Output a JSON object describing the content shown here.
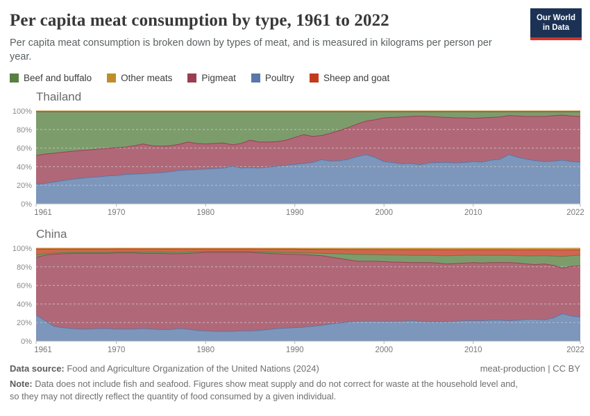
{
  "header": {
    "title": "Per capita meat consumption by type, 1961 to 2022",
    "subtitle": "Per capita meat consumption is broken down by types of meat, and is measured in kilograms per person per year.",
    "logo_line1": "Our World",
    "logo_line2": "in Data",
    "logo_bg": "#1c3254",
    "logo_accent": "#ce362b"
  },
  "legend": {
    "items": [
      {
        "label": "Beef and buffalo",
        "color": "#588043"
      },
      {
        "label": "Other meats",
        "color": "#BE8E2B"
      },
      {
        "label": "Pigmeat",
        "color": "#9A3E52"
      },
      {
        "label": "Poultry",
        "color": "#5878A8"
      },
      {
        "label": "Sheep and goat",
        "color": "#C23B1D"
      }
    ]
  },
  "chart_data": [
    {
      "type": "area",
      "stacked": true,
      "normalized": "percent",
      "entity": "Thailand",
      "x_start": 1961,
      "x_end": 2022,
      "x_ticks": [
        1961,
        1970,
        1980,
        1990,
        2000,
        2010,
        2022
      ],
      "y_ticks": [
        0,
        20,
        40,
        60,
        80,
        100
      ],
      "y_unit": "%",
      "grid": true,
      "series": [
        {
          "name": "Poultry",
          "color": "#5878A8",
          "values": [
            21,
            22,
            23.5,
            25,
            26.5,
            27.5,
            28.5,
            29,
            30,
            30.5,
            31.5,
            32,
            32.5,
            33,
            33.5,
            34.5,
            36,
            36.5,
            37,
            37.5,
            38,
            38.5,
            40.5,
            38.5,
            39,
            38.5,
            39.5,
            40.5,
            41.5,
            42.5,
            43.5,
            44.5,
            47.5,
            46,
            46.5,
            48,
            51,
            53,
            50,
            45.5,
            44.5,
            43,
            43.5,
            42,
            44,
            44.5,
            44.5,
            44,
            44.5,
            45.5,
            45,
            47,
            48,
            53,
            50,
            48,
            46.5,
            45.5,
            46,
            47,
            45.5,
            45
          ]
        },
        {
          "name": "Pigmeat",
          "color": "#9A3E52",
          "values": [
            31,
            31.5,
            31,
            30.5,
            30,
            30,
            29.5,
            30,
            29.5,
            30,
            29.5,
            30.5,
            32,
            29.5,
            28.5,
            28,
            28,
            30,
            28,
            27,
            27,
            27,
            23,
            26.5,
            29.5,
            28,
            27,
            26.5,
            27,
            29,
            31,
            28,
            26,
            30,
            32.5,
            34,
            35,
            36,
            40.5,
            47,
            48.5,
            50.5,
            50.5,
            52.5,
            50,
            49,
            48.5,
            48.5,
            48,
            46.5,
            47.5,
            46,
            45.5,
            42,
            44.5,
            46,
            47.5,
            48.5,
            49,
            48.5,
            49,
            49
          ]
        },
        {
          "name": "Beef and buffalo",
          "color": "#588043",
          "values": [
            47,
            45.5,
            44.5,
            43.5,
            42.5,
            41.5,
            41,
            40,
            39.5,
            38.5,
            38,
            36.5,
            34.5,
            36.5,
            37,
            36.5,
            35,
            32.5,
            34,
            34.5,
            34,
            33.5,
            35.5,
            34,
            30.5,
            32.5,
            32.5,
            32,
            30.5,
            27.5,
            24.5,
            26.5,
            25.5,
            23,
            20,
            17,
            13,
            10,
            8.5,
            6.5,
            6,
            5.5,
            5,
            4.5,
            5,
            5.5,
            6,
            6.5,
            6.5,
            7,
            6.5,
            6,
            5.5,
            4,
            4.5,
            5,
            5,
            5,
            4,
            3.5,
            4.5,
            5
          ]
        },
        {
          "name": "Sheep and goat",
          "color": "#C23B1D",
          "values": 0.35
        },
        {
          "name": "Other meats",
          "color": "#BE8E2B",
          "values": 0.65
        }
      ]
    },
    {
      "type": "area",
      "stacked": true,
      "normalized": "percent",
      "entity": "China",
      "x_start": 1961,
      "x_end": 2022,
      "x_ticks": [
        1961,
        1970,
        1980,
        1990,
        2000,
        2010,
        2022
      ],
      "y_ticks": [
        0,
        20,
        40,
        60,
        80,
        100
      ],
      "y_unit": "%",
      "grid": true,
      "series": [
        {
          "name": "Poultry",
          "color": "#5878A8",
          "values": [
            28,
            22,
            16,
            14.5,
            13.5,
            13,
            13,
            13.5,
            13.5,
            13,
            13,
            13,
            13.5,
            13,
            12.5,
            12.5,
            13.5,
            13,
            11.5,
            11,
            10.5,
            10.5,
            10.5,
            11,
            11,
            11.5,
            12.5,
            13.5,
            14,
            14.5,
            15,
            16,
            17,
            18.5,
            19.5,
            20.5,
            21.5,
            21.5,
            21.5,
            21.5,
            21.5,
            21.5,
            22,
            21.5,
            21,
            21,
            21,
            21.5,
            22,
            22,
            22,
            22.5,
            22.5,
            22,
            22.5,
            23.5,
            23.5,
            23,
            25,
            29.5,
            27,
            26
          ]
        },
        {
          "name": "Pigmeat",
          "color": "#9A3E52",
          "values": [
            62,
            70.5,
            77.5,
            79.5,
            81,
            81.5,
            81.5,
            81,
            81,
            82,
            82,
            82,
            81,
            81.5,
            82,
            81.5,
            80.5,
            81.5,
            83.5,
            84.5,
            85,
            85,
            85,
            84.5,
            84.5,
            83.5,
            82,
            80.5,
            79.5,
            79,
            78,
            76.5,
            75,
            72,
            69.5,
            67,
            64.5,
            64.5,
            64.5,
            64,
            63.5,
            63.5,
            62.5,
            63,
            63.5,
            63,
            62,
            62,
            62,
            62.5,
            62,
            62,
            62,
            62.5,
            61.5,
            59.5,
            59,
            60,
            56.5,
            49,
            53.5,
            55
          ]
        },
        {
          "name": "Beef and buffalo",
          "color": "#588043",
          "values": [
            2.5,
            1.5,
            1.3,
            1.2,
            1,
            1,
            1,
            1,
            1,
            1,
            1,
            1,
            1.3,
            1.3,
            1.3,
            1.5,
            1.5,
            1.5,
            1.3,
            1,
            1,
            1,
            1,
            1,
            1,
            1.2,
            1.3,
            1.5,
            1.7,
            1.7,
            2,
            2.3,
            2.5,
            3.8,
            5,
            6.1,
            7.2,
            7.2,
            7,
            7.3,
            7.6,
            7.6,
            7.9,
            7.9,
            7.8,
            8.2,
            9,
            8.7,
            8.4,
            8,
            8.3,
            7.9,
            7.9,
            7.8,
            8,
            8.8,
            9.3,
            9,
            10,
            12.5,
            11.5,
            11.5
          ]
        },
        {
          "name": "Sheep and goat",
          "color": "#C23B1D",
          "values": [
            6.5,
            5,
            4.2,
            3.8,
            3.5,
            3.5,
            3.5,
            3.5,
            3.5,
            3.2,
            3.2,
            3.2,
            3.4,
            3.4,
            3.4,
            3.7,
            3.7,
            3.2,
            2.9,
            2.7,
            2.7,
            2.7,
            2.7,
            2.7,
            2.7,
            2.9,
            3.3,
            3.5,
            3.8,
            3.8,
            3.9,
            4.1,
            4.3,
            4.5,
            4.7,
            5,
            5.4,
            5.4,
            5.6,
            5.7,
            5.9,
            5.9,
            6.1,
            6.1,
            6.2,
            6.2,
            6.4,
            6.2,
            6,
            5.9,
            6.1,
            6,
            6,
            6.1,
            6.3,
            6.5,
            6.5,
            6.3,
            6.8,
            7.2,
            6.3,
            5.9
          ]
        },
        {
          "name": "Other meats",
          "color": "#BE8E2B",
          "values": [
            1,
            1,
            1,
            1,
            1,
            1,
            1,
            1,
            1,
            0.8,
            0.8,
            0.8,
            0.8,
            0.8,
            0.8,
            0.8,
            0.8,
            0.8,
            0.8,
            0.8,
            0.8,
            0.8,
            0.8,
            0.8,
            0.8,
            0.9,
            0.9,
            1,
            1,
            1,
            1.1,
            1.1,
            1.2,
            1.2,
            1.3,
            1.4,
            1.4,
            1.4,
            1.4,
            1.5,
            1.5,
            1.5,
            1.5,
            1.5,
            1.5,
            1.6,
            1.6,
            1.6,
            1.6,
            1.6,
            1.6,
            1.6,
            1.6,
            1.6,
            1.7,
            1.7,
            1.7,
            1.7,
            1.7,
            1.8,
            1.7,
            1.6
          ]
        }
      ]
    }
  ],
  "footer": {
    "source_label": "Data source:",
    "source_text": " Food and Agriculture Organization of the United Nations (2024)",
    "rights": "meat-production | CC BY",
    "note_label": "Note:",
    "note_text": " Data does not include fish and seafood. Figures show meat supply and do not correct for waste at the household level and, so they may not directly reflect the quantity of food consumed by a given individual."
  }
}
